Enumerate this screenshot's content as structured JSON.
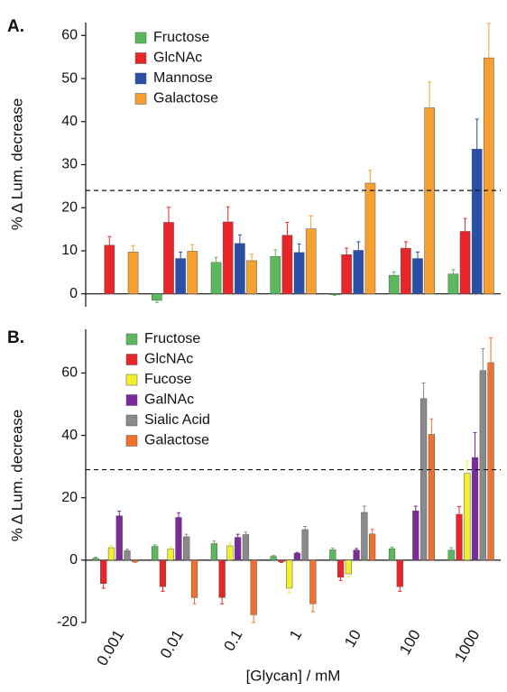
{
  "chart_data": [
    {
      "type": "bar",
      "panel_label": "A.",
      "ylabel": "% Δ Lum. decrease",
      "categories": [
        null,
        null,
        null,
        null,
        null,
        null,
        null
      ],
      "series": [
        {
          "name": "Fructose",
          "color": "#5cb85c",
          "values": [
            null,
            -1.5,
            7.3,
            8.7,
            -0.2,
            4.3,
            4.6
          ],
          "errors": [
            null,
            0.5,
            1.2,
            1.5,
            0.2,
            0.8,
            1.0
          ]
        },
        {
          "name": "GlcNAc",
          "color": "#e8262a",
          "values": [
            11.3,
            16.6,
            16.7,
            13.6,
            9.1,
            10.6,
            14.5
          ],
          "errors": [
            2.0,
            3.5,
            3.5,
            3.0,
            1.5,
            1.5,
            3.0
          ]
        },
        {
          "name": "Mannose",
          "color": "#2a4fa8",
          "values": [
            null,
            8.2,
            11.7,
            9.6,
            10.1,
            8.2,
            33.6
          ],
          "errors": [
            null,
            1.5,
            2.0,
            2.0,
            2.0,
            1.5,
            7.0
          ]
        },
        {
          "name": "Galactose",
          "color": "#f5a030",
          "values": [
            9.7,
            9.9,
            7.7,
            15.1,
            25.7,
            43.2,
            54.8
          ],
          "errors": [
            1.5,
            1.5,
            1.5,
            3.0,
            3.0,
            6.0,
            8.0
          ]
        }
      ],
      "ylim": [
        -3,
        63
      ],
      "yticks": [
        0,
        10,
        20,
        30,
        40,
        50,
        60
      ],
      "threshold": 24
    },
    {
      "type": "bar",
      "panel_label": "B.",
      "ylabel": "% Δ Lum. decrease",
      "xlabel": "[Glycan] / mM",
      "categories": [
        "0.001",
        "0.01",
        "0.1",
        "1",
        "10",
        "100",
        "1000"
      ],
      "series": [
        {
          "name": "Fructose",
          "color": "#5cb85c",
          "values": [
            0.6,
            4.4,
            5.3,
            1.2,
            3.3,
            3.7,
            3.2
          ],
          "errors": [
            0.3,
            0.5,
            0.8,
            0.3,
            0.5,
            0.5,
            0.8
          ]
        },
        {
          "name": "GlcNAc",
          "color": "#e8262a",
          "values": [
            -7.5,
            -8.5,
            -12,
            -0.5,
            -5.5,
            -8.5,
            14.7
          ],
          "errors": [
            1.5,
            1.5,
            2.0,
            0.3,
            1.0,
            1.5,
            2.5
          ]
        },
        {
          "name": "Fucose",
          "color": "#f2ee30",
          "values": [
            4.0,
            3.5,
            4.6,
            -9,
            -4.4,
            null,
            27.8
          ],
          "errors": [
            0.7,
            0.7,
            0.8,
            1.5,
            1.0,
            null,
            4.0
          ]
        },
        {
          "name": "GalNAc",
          "color": "#7a2a9a",
          "values": [
            14.2,
            13.7,
            7.3,
            2.2,
            3.2,
            15.8,
            32.9
          ],
          "errors": [
            1.5,
            1.5,
            1.0,
            0.3,
            0.5,
            1.5,
            8.0
          ]
        },
        {
          "name": "Sialic Acid",
          "color": "#8a8a8a",
          "values": [
            3.0,
            7.5,
            8.2,
            9.8,
            15.3,
            51.8,
            60.8
          ],
          "errors": [
            0.5,
            0.8,
            0.8,
            1.0,
            2.0,
            5.0,
            7.0
          ]
        },
        {
          "name": "Galactose",
          "color": "#f07030",
          "values": [
            -0.5,
            -12,
            -17.5,
            -14,
            8.4,
            40.3,
            63.3
          ],
          "errors": [
            0.2,
            2.0,
            2.5,
            2.5,
            1.5,
            5.0,
            8.0
          ]
        }
      ],
      "ylim": [
        -20,
        74
      ],
      "yticks": [
        -20,
        0,
        20,
        40,
        60
      ],
      "threshold": 29
    }
  ]
}
